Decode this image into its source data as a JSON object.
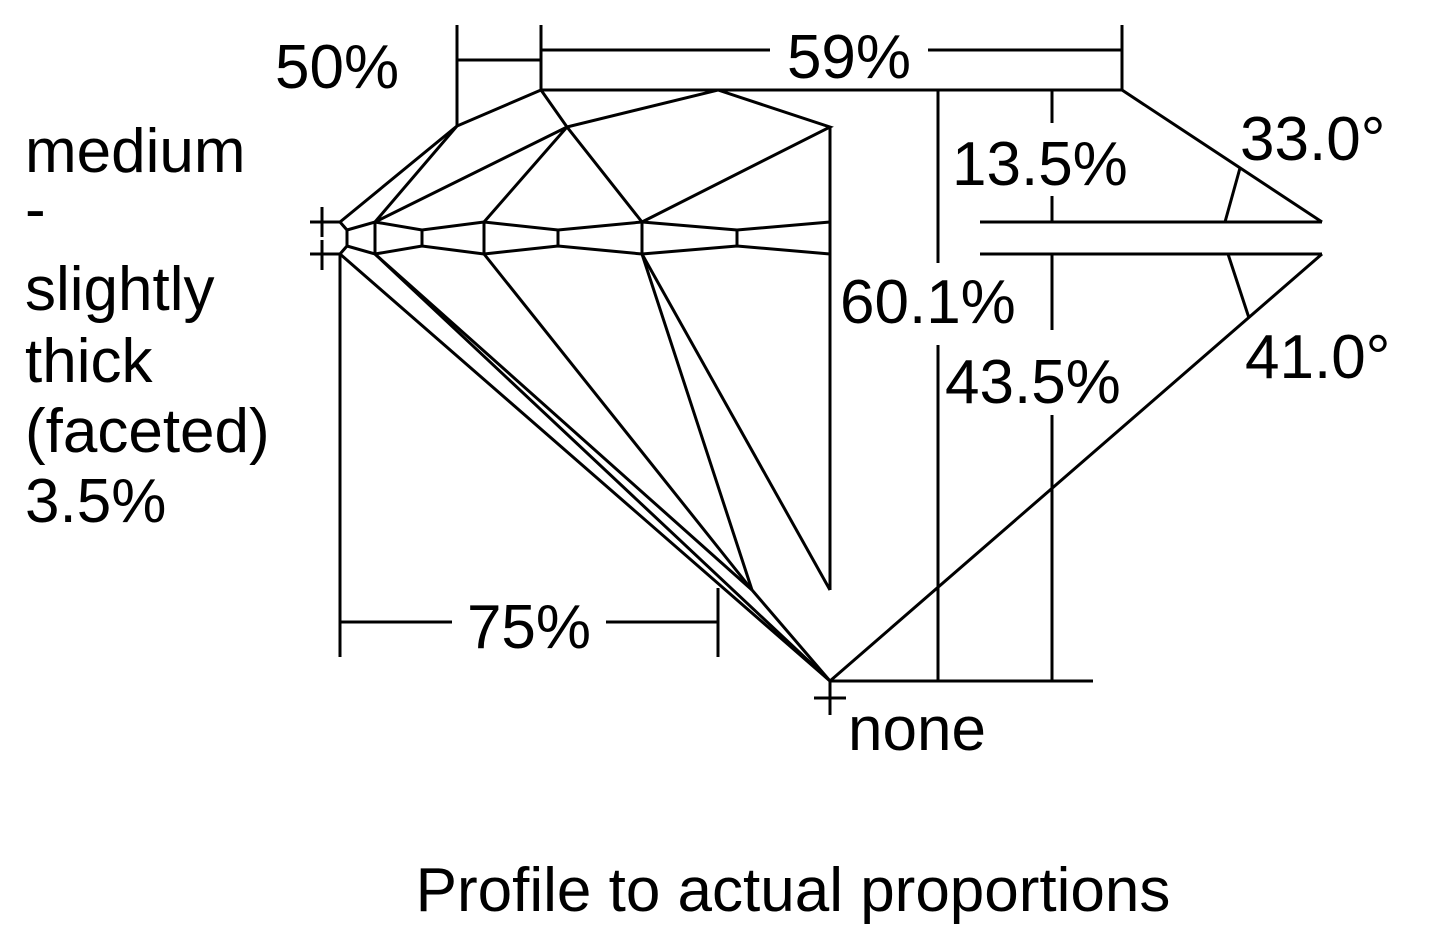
{
  "labels": {
    "crown_height_star": "50%",
    "table": "59%",
    "girdle": [
      "medium",
      "-",
      "slightly",
      "thick",
      "(faceted)",
      "3.5%"
    ],
    "crown_height": "13.5%",
    "crown_angle": "33.0°",
    "total_depth": "60.1%",
    "pavilion_angle": "41.0°",
    "pavilion_depth": "43.5%",
    "lower_half": "75%",
    "culet": "none"
  },
  "caption": "Profile to actual proportions",
  "colors": {
    "line": "#000000",
    "background": "#ffffff"
  }
}
